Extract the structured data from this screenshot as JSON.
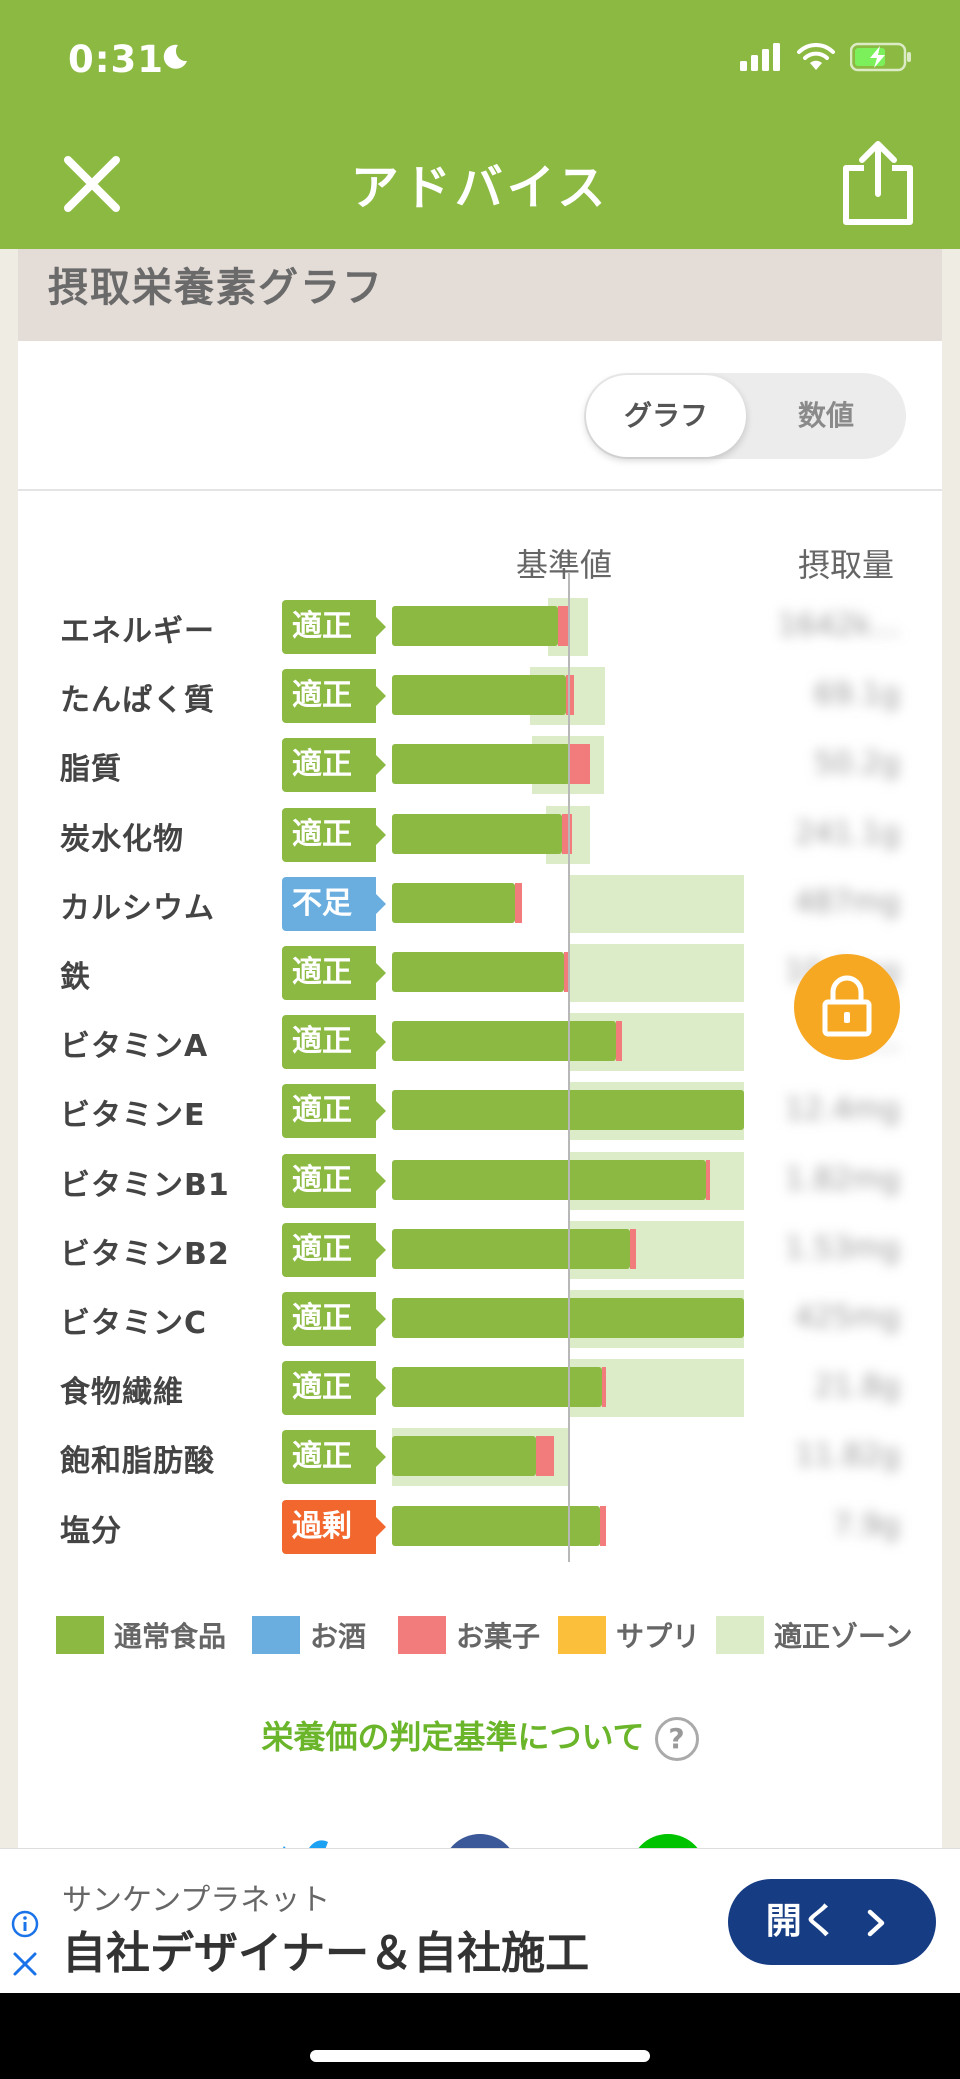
{
  "status_bar": {
    "time": "0:31"
  },
  "header": {
    "title": "アドバイス"
  },
  "section": {
    "title": "摂取栄養素グラフ"
  },
  "toggle": {
    "graph_label": "グラフ",
    "numeric_label": "数値",
    "selected": "グラフ"
  },
  "columns": {
    "reference": "基準値",
    "intake": "摂取量"
  },
  "nutrients": [
    {
      "name": "エネルギー",
      "status": "適正",
      "value": "1642k..."
    },
    {
      "name": "たんぱく質",
      "status": "適正",
      "value": "69.1g"
    },
    {
      "name": "脂質",
      "status": "適正",
      "value": "50.2g"
    },
    {
      "name": "炭水化物",
      "status": "適正",
      "value": "241.1g"
    },
    {
      "name": "カルシウム",
      "status": "不足",
      "value": "487mg"
    },
    {
      "name": "鉄",
      "status": "適正",
      "value": "10.1mg"
    },
    {
      "name": "ビタミンA",
      "status": "適正",
      "value": "9..."
    },
    {
      "name": "ビタミンE",
      "status": "適正",
      "value": "12.4mg"
    },
    {
      "name": "ビタミンB1",
      "status": "適正",
      "value": "1.82mg"
    },
    {
      "name": "ビタミンB2",
      "status": "適正",
      "value": "1.53mg"
    },
    {
      "name": "ビタミンC",
      "status": "適正",
      "value": "425mg"
    },
    {
      "name": "食物繊維",
      "status": "適正",
      "value": "21.8g"
    },
    {
      "name": "飽和脂肪酸",
      "status": "適正",
      "value": "11.82g"
    },
    {
      "name": "塩分",
      "status": "過剰",
      "value": "7.9g"
    }
  ],
  "legend": [
    {
      "label": "通常食品",
      "color": "#8bb942"
    },
    {
      "label": "お酒",
      "color": "#6aaee0"
    },
    {
      "label": "お菓子",
      "color": "#f27c7c"
    },
    {
      "label": "サプリ",
      "color": "#fbbf3c"
    },
    {
      "label": "適正ゾーン",
      "color": "#dcebc8"
    }
  ],
  "criteria_link": "栄養価の判定基準について",
  "help_icon_text": "?",
  "ad": {
    "sponsor": "サンケンプラネット",
    "title": "自社デザイナー＆自社施工",
    "button": "開く"
  },
  "colors": {
    "header": "#8bb942",
    "bar": "#8bb942",
    "snack": "#f27c7c",
    "zone": "#dcebc8",
    "status_ok": "#8bb942",
    "status_low": "#6aaee0",
    "status_high": "#f1672d",
    "lock": "#f7a823",
    "ad_button": "#163c84"
  },
  "icons": [
    "moon-icon",
    "signal-icon",
    "wifi-icon",
    "battery-charging-icon",
    "close-icon",
    "share-icon",
    "lock-icon",
    "help-icon",
    "info-icon",
    "ad-close-icon",
    "chevron-right-icon",
    "twitter-icon",
    "facebook-icon",
    "line-icon"
  ]
}
